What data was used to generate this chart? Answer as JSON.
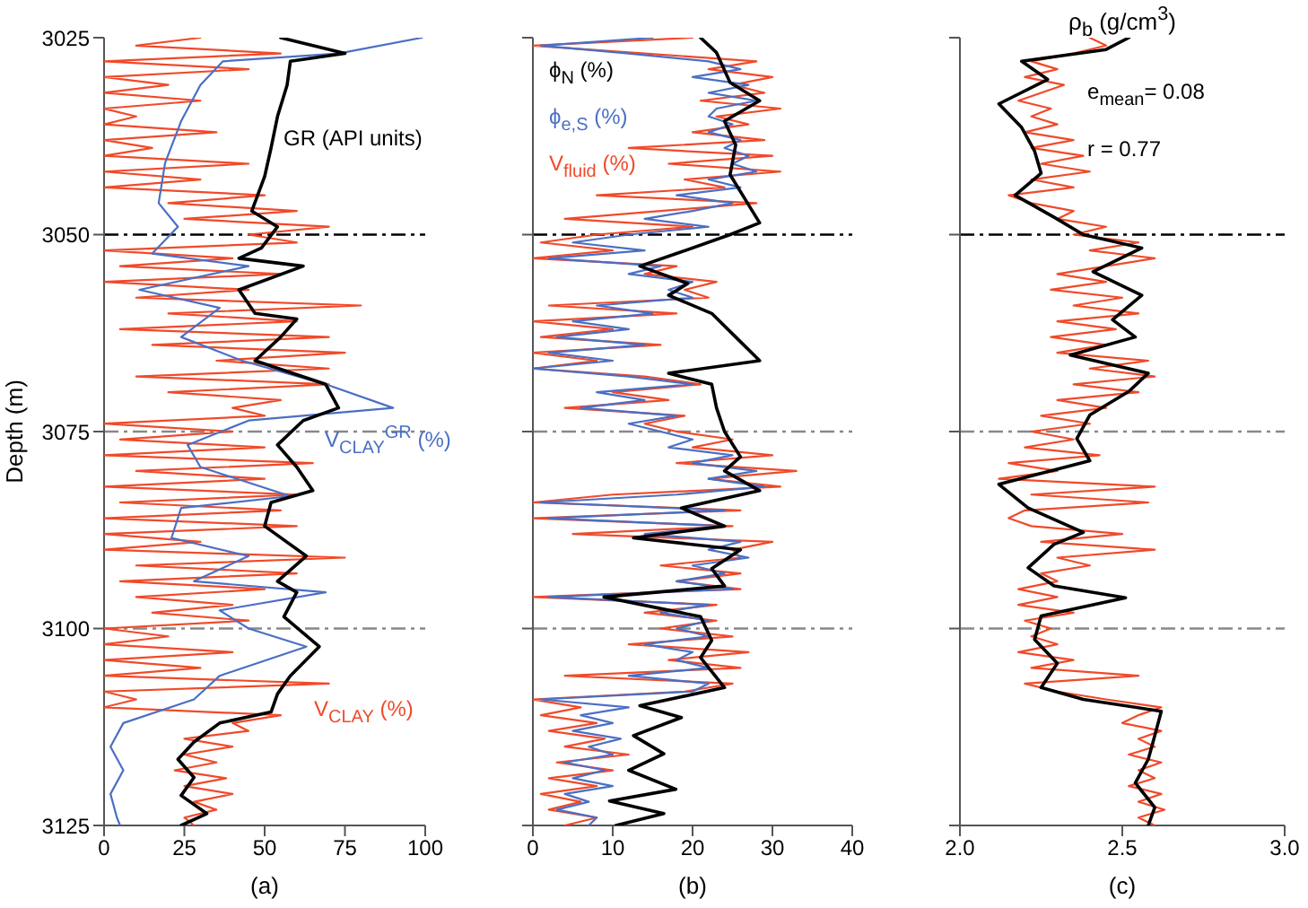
{
  "chart_data": [
    {
      "type": "line",
      "xlabel": "(a)",
      "ylabel": "Depth (m)",
      "xlim": [
        0,
        100
      ],
      "xticks": [
        0,
        25,
        50,
        75,
        100
      ],
      "ylim": [
        3125,
        3025
      ],
      "yticks": [
        3025,
        3050,
        3075,
        3100,
        3125
      ],
      "marker": "none",
      "ref_lines": [
        {
          "axis": "y",
          "value": 3050,
          "color": "#000000",
          "line_style": "dashed"
        },
        {
          "axis": "y",
          "value": 3075,
          "color": "#888888",
          "line_style": "dashed"
        },
        {
          "axis": "y",
          "value": 3100,
          "color": "#888888",
          "line_style": "dashed"
        }
      ],
      "series": [
        {
          "name": "GR (API units)",
          "color": "#000000",
          "x": [
            55,
            75,
            58,
            57,
            54,
            52,
            50,
            46,
            54,
            49,
            42,
            62,
            42,
            47,
            60,
            55,
            47,
            69,
            73,
            62,
            54,
            60,
            65,
            52,
            50,
            63,
            54,
            60,
            56,
            67,
            58,
            54,
            52,
            36,
            28,
            23,
            28,
            24,
            32,
            24
          ],
          "values": [
            3025,
            3027,
            3028,
            3031,
            3035,
            3039,
            3042.6,
            3047,
            3049,
            3051.7,
            3053,
            3054,
            3057,
            3060,
            3060.7,
            3063,
            3066,
            3069,
            3072,
            3073.6,
            3076.7,
            3079.5,
            3082.5,
            3084,
            3087,
            3090.8,
            3094,
            3095.4,
            3098.5,
            3102.3,
            3106,
            3108.3,
            3110.6,
            3112,
            3114.4,
            3116.6,
            3118.9,
            3121.2,
            3123.5,
            3125
          ]
        },
        {
          "name": "V$_{CLAY}$$^{GR}$ (%)",
          "color": "#4a6fc4",
          "x": [
            99,
            73,
            37,
            30,
            24,
            19,
            17,
            23,
            15,
            45,
            11,
            36,
            24,
            43,
            69,
            90,
            45,
            26,
            30,
            58,
            24,
            21,
            45,
            28,
            69,
            36,
            45,
            63,
            36,
            28,
            6,
            2,
            6,
            2,
            4,
            5
          ],
          "values": [
            3025,
            3027,
            3028,
            3031,
            3035.6,
            3040.9,
            3046,
            3049,
            3052.4,
            3054,
            3057,
            3059.3,
            3063,
            3066,
            3069,
            3072,
            3073.6,
            3076.7,
            3079.5,
            3083.2,
            3084.7,
            3088.5,
            3090.8,
            3094,
            3095.4,
            3097.7,
            3100,
            3102.3,
            3106,
            3109,
            3112,
            3115,
            3118,
            3121,
            3124,
            3125
          ]
        },
        {
          "name": "V$_{CLAY}$ (%)",
          "color": "#f04a2a",
          "x": [
            30,
            10,
            55,
            0,
            45,
            0,
            20,
            0,
            30,
            0,
            10,
            0,
            35,
            0,
            15,
            0,
            45,
            0,
            30,
            0,
            50,
            20,
            60,
            25,
            70,
            45,
            60,
            0,
            40,
            5,
            55,
            0,
            45,
            10,
            80,
            20,
            60,
            5,
            70,
            15,
            75,
            35,
            70,
            10,
            70,
            20,
            55,
            40,
            50,
            0,
            40,
            5,
            50,
            0,
            65,
            10,
            50,
            0,
            60,
            5,
            55,
            0,
            60,
            0,
            30,
            0,
            75,
            10,
            60,
            5,
            50,
            10,
            40,
            15,
            45,
            0,
            20,
            0,
            40,
            0,
            30,
            0,
            70,
            0,
            10,
            0,
            55,
            40,
            45,
            25,
            40,
            25,
            35,
            22,
            38,
            25,
            40,
            28,
            35,
            25,
            28
          ],
          "values": [
            3025,
            3026,
            3027,
            3028,
            3029,
            3030,
            3031,
            3032,
            3033,
            3034,
            3035,
            3036,
            3037,
            3038,
            3039,
            3040,
            3041,
            3042,
            3043,
            3044,
            3045,
            3046,
            3047,
            3048,
            3049,
            3050,
            3051,
            3052,
            3053,
            3054,
            3055,
            3056,
            3057,
            3058,
            3059,
            3060,
            3061,
            3062,
            3063,
            3064,
            3065,
            3066,
            3067,
            3068,
            3069,
            3070,
            3071,
            3072,
            3073,
            3074,
            3075,
            3076,
            3077,
            3078,
            3079,
            3080,
            3081,
            3082,
            3083,
            3084,
            3085,
            3086,
            3087,
            3088,
            3089,
            3090,
            3091,
            3092,
            3093,
            3094,
            3095,
            3096,
            3097,
            3098,
            3099,
            3100,
            3101,
            3102,
            3103,
            3104,
            3105,
            3106,
            3107,
            3108,
            3109,
            3110,
            3111,
            3112,
            3113,
            3114,
            3115,
            3116,
            3117,
            3118,
            3119,
            3120,
            3121,
            3122,
            3123,
            3124,
            3125
          ]
        }
      ]
    },
    {
      "type": "line",
      "xlabel": "(b)",
      "xlim": [
        0,
        40
      ],
      "xticks": [
        0,
        10,
        20,
        30,
        40
      ],
      "ylim": [
        3125,
        3025
      ],
      "yticks": [
        3025,
        3050,
        3075,
        3100,
        3125
      ],
      "tick_labels": "x",
      "marker": "none",
      "ref_lines": [
        {
          "axis": "y",
          "value": 3050,
          "color": "#000000",
          "line_style": "dashed"
        },
        {
          "axis": "y",
          "value": 3075,
          "color": "#888888",
          "line_style": "dashed"
        },
        {
          "axis": "y",
          "value": 3100,
          "color": "#888888",
          "line_style": "dashed"
        }
      ],
      "series": [
        {
          "name": "ϕ$_{N}$ (%)",
          "color": "#000000",
          "x": [
            21,
            23,
            24.7,
            28.4,
            24,
            25.4,
            24.7,
            27,
            28.4,
            24.7,
            18,
            13.4,
            19.4,
            17,
            22.4,
            25.4,
            28.4,
            17,
            22.4,
            23,
            24,
            26,
            24,
            28.4,
            18.6,
            24,
            12.6,
            26,
            22.4,
            24,
            8.9,
            21,
            22.4,
            21,
            24,
            13.4,
            18.6,
            12.6,
            16.4,
            12,
            17.9,
            9.6,
            16.4,
            10.4
          ],
          "values": [
            3025,
            3026.9,
            3030.7,
            3033,
            3035.6,
            3038.6,
            3042.4,
            3046.2,
            3048.5,
            3050,
            3052.4,
            3054,
            3056.2,
            3057.7,
            3060,
            3063,
            3066,
            3067.6,
            3069,
            3072,
            3075,
            3078.2,
            3080,
            3082.5,
            3084.7,
            3087,
            3088.5,
            3090,
            3092.4,
            3094.6,
            3096,
            3098.5,
            3101.5,
            3103.7,
            3107.5,
            3109.8,
            3111.3,
            3113.6,
            3115.9,
            3118,
            3120.4,
            3121.9,
            3123.5,
            3125
          ]
        },
        {
          "name": "ϕ$_{e,S}$ (%)",
          "color": "#4a6fc4",
          "x": [
            15,
            1,
            12,
            22,
            26,
            20,
            27,
            22,
            28,
            23,
            22,
            25,
            22,
            26,
            24,
            27,
            25,
            28,
            22,
            26,
            18,
            25,
            20,
            14,
            22,
            12,
            5,
            14,
            2,
            16,
            12,
            20,
            17,
            20,
            8,
            15,
            5,
            12,
            3,
            14,
            2,
            10,
            0,
            12,
            20,
            8,
            14,
            6,
            18,
            12,
            16,
            20,
            17,
            25,
            20,
            28,
            22,
            29,
            18,
            1,
            24,
            2,
            24,
            14,
            26,
            22,
            27,
            20,
            24,
            18,
            25,
            2,
            22,
            16,
            22,
            18,
            22,
            14,
            20,
            18,
            22,
            12,
            22,
            20,
            1,
            12,
            6,
            10,
            5,
            11,
            7,
            10,
            4,
            9,
            5,
            10,
            4,
            7,
            3,
            8,
            7
          ],
          "values": [
            3025,
            3026,
            3027,
            3028,
            3029,
            3030,
            3031,
            3032,
            3033,
            3034,
            3035,
            3036,
            3037,
            3038,
            3039,
            3040,
            3041,
            3042,
            3043,
            3044,
            3045,
            3046,
            3047,
            3048,
            3049,
            3050,
            3051,
            3052,
            3053,
            3054,
            3055,
            3056,
            3057,
            3058,
            3059,
            3060,
            3061,
            3062,
            3063,
            3064,
            3065,
            3066,
            3067,
            3068,
            3069,
            3070,
            3071,
            3072,
            3073,
            3074,
            3075,
            3076,
            3077,
            3078,
            3079,
            3080,
            3081,
            3082,
            3083,
            3084,
            3085,
            3086,
            3087,
            3088,
            3089,
            3090,
            3091,
            3092,
            3093,
            3094,
            3095,
            3096,
            3097,
            3098,
            3099,
            3100,
            3101,
            3102,
            3103,
            3104,
            3105,
            3106,
            3107,
            3108,
            3109,
            3110,
            3111,
            3112,
            3113,
            3114,
            3115,
            3116,
            3117,
            3118,
            3119,
            3120,
            3121,
            3122,
            3123,
            3124,
            3125
          ]
        },
        {
          "name": "V$_{fluid}$ (%)",
          "color": "#f04a2a",
          "x": [
            20,
            0,
            14,
            28,
            22,
            30,
            25,
            29,
            21,
            31,
            23,
            27,
            20,
            29,
            12,
            30,
            17,
            31,
            19,
            24,
            8,
            28,
            16,
            4,
            20,
            8,
            1,
            10,
            0,
            18,
            14,
            23,
            19,
            22,
            2,
            18,
            0,
            10,
            1,
            16,
            0,
            8,
            0,
            14,
            21,
            10,
            17,
            4,
            19,
            14,
            18,
            25,
            20,
            30,
            18,
            33,
            22,
            31,
            10,
            0,
            26,
            0,
            25,
            5,
            30,
            25,
            26,
            16,
            26,
            18,
            26,
            0,
            23,
            14,
            23,
            16,
            25,
            12,
            27,
            17,
            26,
            4,
            25,
            19,
            0,
            6,
            1,
            8,
            2,
            9,
            4,
            12,
            3,
            10,
            2,
            8,
            1,
            6,
            2,
            8,
            4
          ],
          "values": [
            3025,
            3026,
            3027,
            3028,
            3029,
            3030,
            3031,
            3032,
            3033,
            3034,
            3035,
            3036,
            3037,
            3038,
            3039,
            3040,
            3041,
            3042,
            3043,
            3044,
            3045,
            3046,
            3047,
            3048,
            3049,
            3050,
            3051,
            3052,
            3053,
            3054,
            3055,
            3056,
            3057,
            3058,
            3059,
            3060,
            3061,
            3062,
            3063,
            3064,
            3065,
            3066,
            3067,
            3068,
            3069,
            3070,
            3071,
            3072,
            3073,
            3074,
            3075,
            3076,
            3077,
            3078,
            3079,
            3080,
            3081,
            3082,
            3083,
            3084,
            3085,
            3086,
            3087,
            3088,
            3089,
            3090,
            3091,
            3092,
            3093,
            3094,
            3095,
            3096,
            3097,
            3098,
            3099,
            3100,
            3101,
            3102,
            3103,
            3104,
            3105,
            3106,
            3107,
            3108,
            3109,
            3110,
            3111,
            3112,
            3113,
            3114,
            3115,
            3116,
            3117,
            3118,
            3119,
            3120,
            3121,
            3122,
            3123,
            3124,
            3125
          ]
        }
      ]
    },
    {
      "type": "line",
      "title": "ρ$_{b}$ (g/cm$^{3}$)",
      "xlabel": "(c)",
      "xlim": [
        2,
        3
      ],
      "xticks": [
        {
          "value": 2,
          "label": "2.0"
        },
        2.5,
        {
          "value": 3,
          "label": "3.0"
        }
      ],
      "ylim": [
        3125,
        3025
      ],
      "yticks": [
        3025,
        3050,
        3075,
        3100,
        3125
      ],
      "tick_labels": "x",
      "marker": "none",
      "annotations": [
        "e$_{mean}$= 0.08",
        "r = 0.77"
      ],
      "ref_lines": [
        {
          "axis": "y",
          "value": 3050,
          "color": "#000000",
          "line_style": "dashed"
        },
        {
          "axis": "y",
          "value": 3075,
          "color": "#888888",
          "line_style": "dashed"
        },
        {
          "axis": "y",
          "value": 3100,
          "color": "#888888",
          "line_style": "dashed"
        }
      ],
      "series": [
        {
          "color": "#000000",
          "x": [
            2.52,
            2.45,
            2.19,
            2.27,
            2.12,
            2.19,
            2.23,
            2.25,
            2.17,
            2.29,
            2.38,
            2.56,
            2.41,
            2.56,
            2.47,
            2.54,
            2.34,
            2.58,
            2.52,
            2.4,
            2.36,
            2.4,
            2.12,
            2.21,
            2.38,
            2.29,
            2.21,
            2.29,
            2.51,
            2.25,
            2.23,
            2.3,
            2.25,
            2.38,
            2.62,
            2.6,
            2.58,
            2.54,
            2.6,
            2.58
          ],
          "values": [
            3025,
            3026.5,
            3028,
            3030.3,
            3033.4,
            3036.4,
            3039.4,
            3042.2,
            3045,
            3047.8,
            3050,
            3051.7,
            3054.7,
            3057.7,
            3060.8,
            3063,
            3065.3,
            3067.6,
            3069.9,
            3072.9,
            3075.9,
            3078.7,
            3081.7,
            3084.7,
            3087.8,
            3089.3,
            3092.3,
            3094.6,
            3096.1,
            3098.4,
            3101.4,
            3104.4,
            3107.5,
            3109,
            3110.5,
            3113.6,
            3116.6,
            3119.6,
            3122.7,
            3125
          ]
        },
        {
          "color": "#f04a2a",
          "x": [
            2.4,
            2.45,
            2.35,
            2.22,
            2.3,
            2.2,
            2.32,
            2.25,
            2.18,
            2.28,
            2.22,
            2.3,
            2.2,
            2.35,
            2.22,
            2.38,
            2.25,
            2.4,
            2.22,
            2.35,
            2.15,
            2.22,
            2.35,
            2.3,
            2.45,
            2.35,
            2.55,
            2.4,
            2.6,
            2.45,
            2.3,
            2.45,
            2.28,
            2.5,
            2.35,
            2.55,
            2.3,
            2.48,
            2.28,
            2.45,
            2.3,
            2.58,
            2.4,
            2.6,
            2.35,
            2.55,
            2.3,
            2.45,
            2.25,
            2.4,
            2.22,
            2.35,
            2.2,
            2.43,
            2.15,
            2.3,
            2.12,
            2.6,
            2.22,
            2.58,
            2.2,
            2.15,
            2.22,
            2.5,
            2.25,
            2.6,
            2.3,
            2.4,
            2.25,
            2.3,
            2.18,
            2.3,
            2.18,
            2.35,
            2.2,
            2.28,
            2.22,
            2.3,
            2.18,
            2.35,
            2.22,
            2.55,
            2.2,
            2.3,
            2.45,
            2.62,
            2.55,
            2.5,
            2.62,
            2.55,
            2.6,
            2.52,
            2.62,
            2.55,
            2.6,
            2.52,
            2.62,
            2.55,
            2.63,
            2.55,
            2.6
          ],
          "values": [
            3025,
            3026,
            3027,
            3028,
            3029,
            3030,
            3031,
            3032,
            3033,
            3034,
            3035,
            3036,
            3037,
            3038,
            3039,
            3040,
            3041,
            3042,
            3043,
            3044,
            3045,
            3046,
            3047,
            3048,
            3049,
            3050,
            3051,
            3052,
            3053,
            3054,
            3055,
            3056,
            3057,
            3058,
            3059,
            3060,
            3061,
            3062,
            3063,
            3064,
            3065,
            3066,
            3067,
            3068,
            3069,
            3070,
            3071,
            3072,
            3073,
            3074,
            3075,
            3076,
            3077,
            3078,
            3079,
            3080,
            3081,
            3082,
            3083,
            3084,
            3085,
            3086,
            3087,
            3088,
            3089,
            3090,
            3091,
            3092,
            3093,
            3094,
            3095,
            3096,
            3097,
            3098,
            3099,
            3100,
            3101,
            3102,
            3103,
            3104,
            3105,
            3106,
            3107,
            3108,
            3109,
            3110,
            3111,
            3112,
            3113,
            3114,
            3115,
            3116,
            3117,
            3118,
            3119,
            3120,
            3121,
            3122,
            3123,
            3124,
            3125
          ]
        }
      ]
    }
  ]
}
